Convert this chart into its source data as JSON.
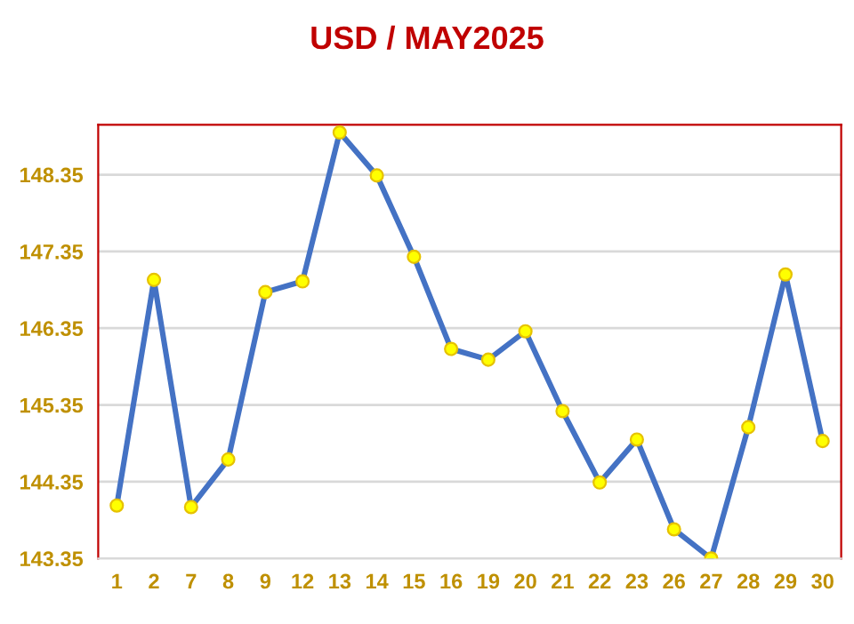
{
  "chart_data": {
    "type": "line",
    "title": "USD / MAY2025",
    "categories": [
      "1",
      "2",
      "7",
      "8",
      "9",
      "12",
      "13",
      "14",
      "15",
      "16",
      "19",
      "20",
      "21",
      "22",
      "23",
      "26",
      "27",
      "28",
      "29",
      "30"
    ],
    "series": [
      {
        "color": "#4472c4",
        "values": [
          144.04,
          146.98,
          144.02,
          144.64,
          146.82,
          146.96,
          148.9,
          148.34,
          147.28,
          146.08,
          145.94,
          146.31,
          145.27,
          144.34,
          144.9,
          143.73,
          143.35,
          145.06,
          147.05,
          144.88
        ]
      }
    ],
    "ylim": [
      143.35,
      149.0
    ],
    "yticks": [
      143.35,
      144.35,
      145.35,
      146.35,
      147.35,
      148.35
    ],
    "grid": "y",
    "marker": "circle",
    "line_style": "solid",
    "legend": false
  }
}
